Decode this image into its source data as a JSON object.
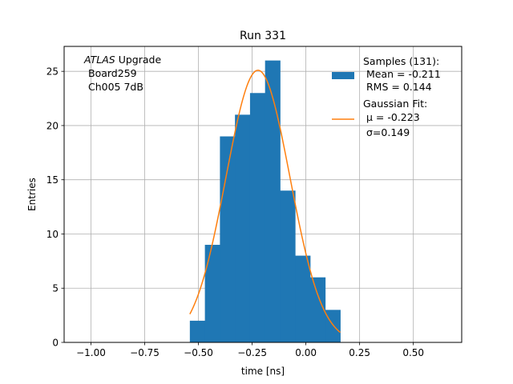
{
  "chart_data": {
    "type": "bar",
    "title": "Run 331",
    "xlabel": "time [ns]",
    "ylabel": "Entries",
    "xlim": [
      -1.125,
      0.725
    ],
    "ylim": [
      0,
      27.3
    ],
    "xticks": [
      -1.0,
      -0.75,
      -0.5,
      -0.25,
      0.0,
      0.25,
      0.5
    ],
    "xtick_labels": [
      "−1.00",
      "−0.75",
      "−0.50",
      "−0.25",
      "0.00",
      "0.25",
      "0.50"
    ],
    "yticks": [
      0,
      5,
      10,
      15,
      20,
      25
    ],
    "ytick_labels": [
      "0",
      "5",
      "10",
      "15",
      "20",
      "25"
    ],
    "grid": true,
    "annotation": {
      "experiment": "ATLAS",
      "line1_suffix": " Upgrade",
      "line2": "Board259",
      "line3": "Ch005 7dB"
    },
    "histogram": {
      "bin_edges": [
        -0.54,
        -0.47,
        -0.4,
        -0.33,
        -0.26,
        -0.19,
        -0.12,
        -0.05,
        0.02,
        0.09,
        0.16
      ],
      "counts": [
        2,
        9,
        19,
        21,
        23,
        26,
        14,
        8,
        6,
        3
      ],
      "color": "#1f77b4"
    },
    "fit": {
      "mu": -0.223,
      "sigma": 0.149,
      "amplitude": 25.1,
      "x_range": [
        -0.54,
        0.16
      ],
      "color": "#ff7f0e"
    },
    "legend": {
      "placement": "top-right",
      "samples_title": "Samples (131):",
      "samples_mean": "Mean = -0.211",
      "samples_rms": "RMS = 0.144",
      "fit_title": "Gaussian Fit:",
      "fit_mu": "μ = -0.223",
      "fit_sigma": "σ=0.149"
    }
  }
}
